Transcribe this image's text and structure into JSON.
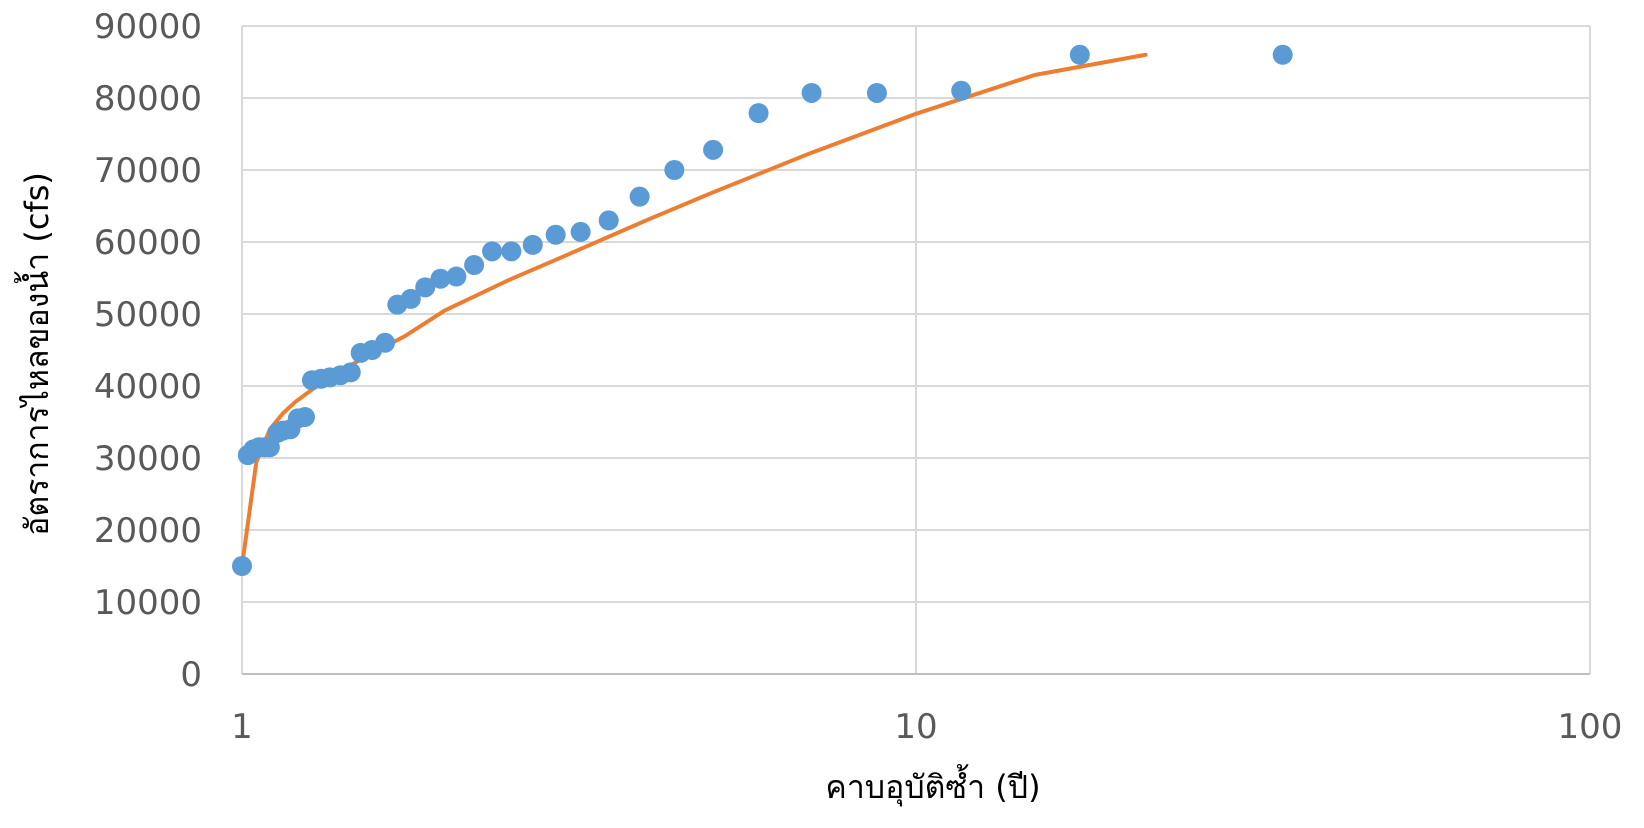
{
  "chart_data": {
    "type": "scatter",
    "title": "",
    "xlabel": "คาบอุบัติซ้ำ (ปี)",
    "ylabel": "อัตราการไหลของน้ำ (cfs)",
    "x_scale": "log",
    "xlim": [
      1,
      100
    ],
    "ylim": [
      0,
      90000
    ],
    "x_ticks": [
      1,
      10,
      100
    ],
    "x_tick_labels": [
      "1",
      "10",
      "100"
    ],
    "y_ticks": [
      0,
      10000,
      20000,
      30000,
      40000,
      50000,
      60000,
      70000,
      80000,
      90000
    ],
    "y_tick_labels": [
      "0",
      "10000",
      "20000",
      "30000",
      "40000",
      "50000",
      "60000",
      "70000",
      "80000",
      "90000"
    ],
    "grid": true,
    "legend": "none",
    "colors": {
      "points": "#5B9BD5",
      "trend": "#ED7D31",
      "grid": "#D9D9D9",
      "tick_text": "#595959"
    },
    "series": [
      {
        "kind": "points",
        "x": [
          1.0,
          1.02,
          1.04,
          1.06,
          1.08,
          1.1,
          1.13,
          1.15,
          1.18,
          1.21,
          1.24,
          1.27,
          1.31,
          1.35,
          1.4,
          1.45,
          1.5,
          1.56,
          1.63,
          1.7,
          1.78,
          1.87,
          1.97,
          2.08,
          2.21,
          2.35,
          2.51,
          2.7,
          2.92,
          3.18,
          3.5,
          3.89,
          4.38,
          5.0,
          5.84,
          7.0,
          8.75,
          11.67,
          17.5,
          35.0
        ],
        "y": [
          15000,
          30400,
          31200,
          31500,
          31500,
          31500,
          33500,
          33800,
          34000,
          35500,
          35700,
          40800,
          41000,
          41200,
          41500,
          41900,
          44600,
          45000,
          46000,
          51300,
          52100,
          53700,
          54900,
          55200,
          56800,
          58700,
          58700,
          59600,
          61000,
          61400,
          63000,
          66300,
          70000,
          72800,
          77900,
          80700,
          80700,
          81000,
          86000,
          86000
        ]
      },
      {
        "kind": "trend",
        "x": [
          1.0,
          1.05,
          1.1,
          1.15,
          1.2,
          1.3,
          1.5,
          1.75,
          2.0,
          2.5,
          3.0,
          4.0,
          5.0,
          7.0,
          10.0,
          15.0,
          21.9
        ],
        "y": [
          15000,
          29400,
          34000,
          36200,
          37800,
          40200,
          43700,
          47000,
          50500,
          54800,
          58000,
          63100,
          66900,
          72400,
          77800,
          83200,
          86000
        ]
      }
    ]
  }
}
